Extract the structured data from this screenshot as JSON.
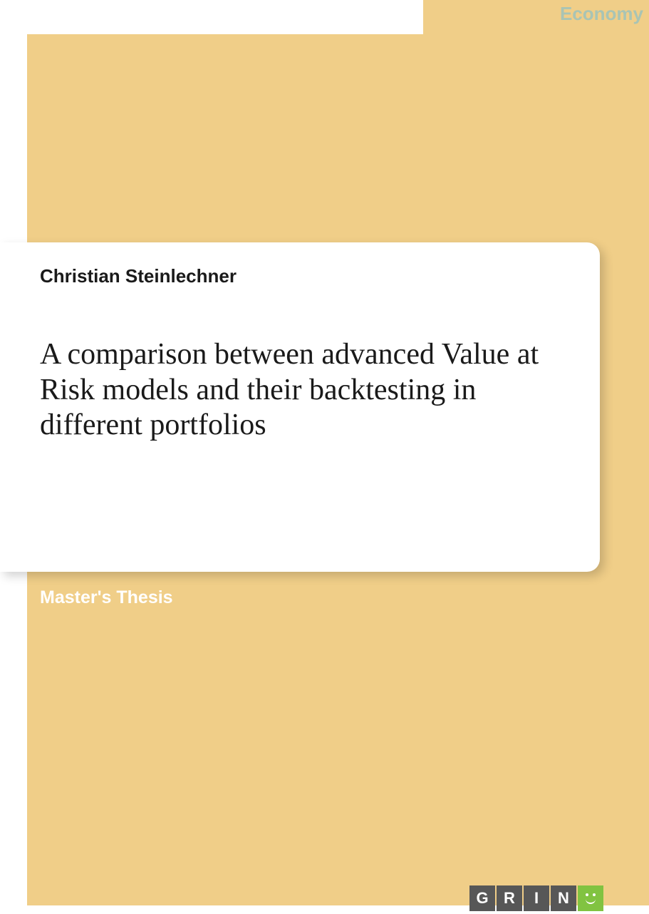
{
  "cover": {
    "category": "Economy",
    "author": "Christian Steinlechner",
    "title": "A comparison between advanced Value at Risk models and their backtesting in different portfolios",
    "thesis_type": "Master's Thesis",
    "publisher_letters": [
      "G",
      "R",
      "I",
      "N"
    ],
    "colors": {
      "background": "#f0ce88",
      "card": "#ffffff",
      "category_text": "#a9c4b4",
      "thesis_text": "#ffffff",
      "logo_dark": "#575757",
      "logo_green": "#81c341"
    }
  }
}
